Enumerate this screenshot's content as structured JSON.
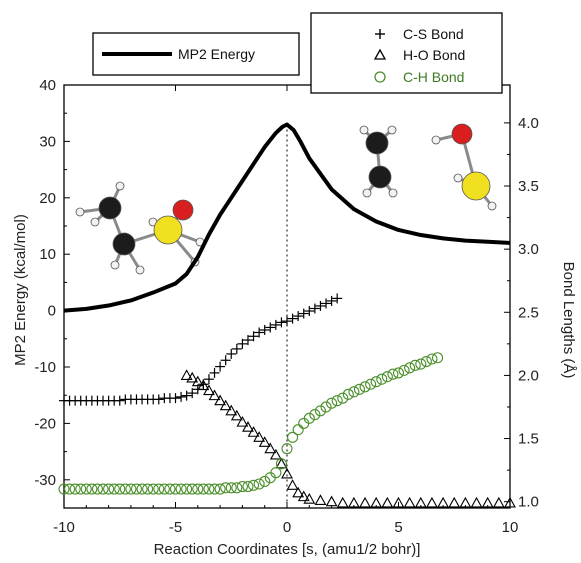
{
  "chart_data": {
    "type": "line",
    "title": "",
    "xlabel": "Reaction Coordinates [s, (amu1/2 bohr)]",
    "ylabel_left": "MP2 Energy (kcal/mol)",
    "ylabel_right": "Bond Lengths (Å)",
    "xlim": [
      -10,
      10
    ],
    "ylim_left": [
      -35,
      40
    ],
    "ylim_right": [
      0.95,
      4.3
    ],
    "x_ticks": [
      -10,
      -5,
      0,
      5,
      10
    ],
    "y_left_ticks": [
      -30,
      -20,
      -10,
      0,
      10,
      20,
      30,
      40
    ],
    "y_right_ticks": [
      1.0,
      1.5,
      2.0,
      2.5,
      3.0,
      3.5,
      4.0
    ],
    "y_right_tick_labels": [
      "1.0",
      "1.5",
      "2.0",
      "2.5",
      "3.0",
      "3.5",
      "4.0"
    ],
    "vline_x": 0,
    "grid": false,
    "legend_energy": {
      "label": "MP2 Energy",
      "placement": "top-left"
    },
    "legend_bonds": {
      "placement": "top-right"
    },
    "series": [
      {
        "name": "MP2 Energy",
        "axis": "left",
        "marker": "line",
        "color": "#000000",
        "x": [
          -10,
          -9,
          -8,
          -7,
          -6,
          -5,
          -4.5,
          -4,
          -3.5,
          -3,
          -2.5,
          -2,
          -1.5,
          -1,
          -0.5,
          -0.2,
          0,
          0.3,
          0.6,
          1,
          2,
          3,
          4,
          5,
          6,
          7,
          8,
          9,
          10
        ],
        "y": [
          0,
          0.3,
          0.9,
          1.8,
          3.2,
          4.8,
          6.5,
          9.5,
          13.5,
          17,
          20,
          23,
          26,
          29,
          31.5,
          32.6,
          33,
          32,
          30,
          27,
          21.5,
          18,
          15.8,
          14.3,
          13.4,
          12.8,
          12.4,
          12.2,
          12
        ]
      },
      {
        "name": "C-S Bond",
        "axis": "right",
        "marker": "plus",
        "color": "#000000",
        "x": [
          -10,
          -9.75,
          -9.5,
          -9.25,
          -9,
          -8.75,
          -8.5,
          -8.25,
          -8,
          -7.75,
          -7.5,
          -7.25,
          -7,
          -6.75,
          -6.5,
          -6.25,
          -6,
          -5.75,
          -5.5,
          -5.25,
          -5,
          -4.75,
          -4.5,
          -4.25,
          -4,
          -3.75,
          -3.5,
          -3.25,
          -3,
          -2.75,
          -2.5,
          -2.25,
          -2,
          -1.75,
          -1.5,
          -1.25,
          -1,
          -0.75,
          -0.5,
          -0.25,
          0,
          0.25,
          0.5,
          0.75,
          1,
          1.25,
          1.5,
          1.75,
          2,
          2.25
        ],
        "y": [
          1.8,
          1.8,
          1.8,
          1.8,
          1.8,
          1.8,
          1.8,
          1.8,
          1.8,
          1.8,
          1.8,
          1.81,
          1.81,
          1.81,
          1.81,
          1.81,
          1.81,
          1.81,
          1.82,
          1.82,
          1.82,
          1.83,
          1.84,
          1.86,
          1.89,
          1.93,
          1.97,
          2.02,
          2.07,
          2.12,
          2.17,
          2.21,
          2.25,
          2.28,
          2.31,
          2.34,
          2.36,
          2.38,
          2.4,
          2.42,
          2.43,
          2.45,
          2.47,
          2.49,
          2.51,
          2.53,
          2.55,
          2.57,
          2.59,
          2.61
        ]
      },
      {
        "name": "H-O Bond",
        "axis": "right",
        "marker": "triangle",
        "color": "#000000",
        "x": [
          -4.5,
          -4.25,
          -4,
          -3.75,
          -3.5,
          -3.25,
          -3,
          -2.75,
          -2.5,
          -2.25,
          -2,
          -1.75,
          -1.5,
          -1.25,
          -1,
          -0.75,
          -0.5,
          -0.25,
          0,
          0.25,
          0.5,
          0.75,
          1,
          1.5,
          2,
          2.5,
          3,
          3.5,
          4,
          4.5,
          5,
          5.5,
          6,
          6.5,
          7,
          7.5,
          8,
          8.5,
          9,
          9.5,
          10
        ],
        "y": [
          2.0,
          1.98,
          1.95,
          1.92,
          1.88,
          1.84,
          1.8,
          1.76,
          1.72,
          1.68,
          1.63,
          1.59,
          1.55,
          1.51,
          1.47,
          1.42,
          1.37,
          1.3,
          1.22,
          1.13,
          1.07,
          1.04,
          1.02,
          1.01,
          1.0,
          0.99,
          0.99,
          0.99,
          0.99,
          0.99,
          0.99,
          0.99,
          0.99,
          0.99,
          0.99,
          0.99,
          0.99,
          0.99,
          0.99,
          0.99,
          0.99
        ]
      },
      {
        "name": "C-H Bond",
        "axis": "right",
        "marker": "circle",
        "color": "#4a8f2a",
        "x": [
          -10,
          -9.75,
          -9.5,
          -9.25,
          -9,
          -8.75,
          -8.5,
          -8.25,
          -8,
          -7.75,
          -7.5,
          -7.25,
          -7,
          -6.75,
          -6.5,
          -6.25,
          -6,
          -5.75,
          -5.5,
          -5.25,
          -5,
          -4.75,
          -4.5,
          -4.25,
          -4,
          -3.75,
          -3.5,
          -3.25,
          -3,
          -2.75,
          -2.5,
          -2.25,
          -2,
          -1.75,
          -1.5,
          -1.25,
          -1,
          -0.75,
          -0.5,
          -0.25,
          0,
          0.25,
          0.5,
          0.75,
          1,
          1.25,
          1.5,
          1.75,
          2,
          2.25,
          2.5,
          2.75,
          3,
          3.25,
          3.5,
          3.75,
          4,
          4.25,
          4.5,
          4.75,
          5,
          5.25,
          5.5,
          5.75,
          6,
          6.25,
          6.5,
          6.75
        ],
        "y": [
          1.1,
          1.1,
          1.1,
          1.1,
          1.1,
          1.1,
          1.1,
          1.1,
          1.1,
          1.1,
          1.1,
          1.1,
          1.1,
          1.1,
          1.1,
          1.1,
          1.1,
          1.1,
          1.1,
          1.1,
          1.1,
          1.1,
          1.1,
          1.1,
          1.1,
          1.1,
          1.1,
          1.1,
          1.1,
          1.11,
          1.11,
          1.11,
          1.12,
          1.12,
          1.13,
          1.14,
          1.16,
          1.19,
          1.23,
          1.3,
          1.42,
          1.51,
          1.57,
          1.62,
          1.66,
          1.69,
          1.72,
          1.75,
          1.78,
          1.8,
          1.82,
          1.85,
          1.87,
          1.89,
          1.91,
          1.93,
          1.95,
          1.97,
          1.99,
          2.01,
          2.02,
          2.04,
          2.06,
          2.08,
          2.09,
          2.11,
          2.13,
          2.14
        ]
      }
    ]
  },
  "molecule_colors": {
    "carbon": "#1c1c1c",
    "hydrogen": "#f2f2f2",
    "sulfur": "#f0e020",
    "oxygen": "#d81e1e",
    "bond": "#8a8a8a"
  }
}
